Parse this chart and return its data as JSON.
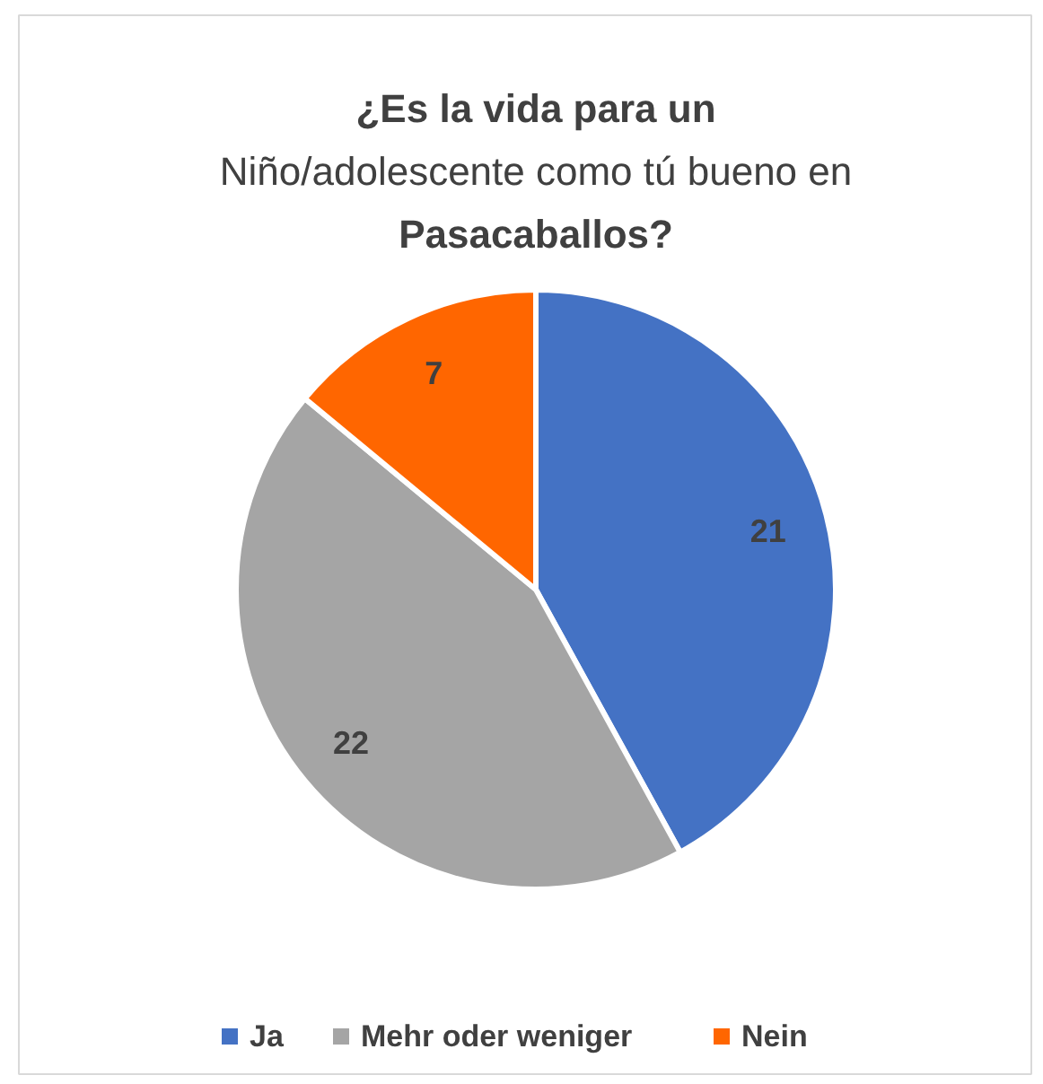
{
  "chart_data": {
    "type": "pie",
    "title": "¿Es la vida para un\nNiño/adolescente como tú bueno en\nPasacaballos?",
    "categories": [
      "Ja",
      "Mehr oder weniger",
      "Nein"
    ],
    "values": [
      21,
      22,
      7
    ],
    "colors": [
      "#4472c4",
      "#a5a5a5",
      "#ff6600"
    ],
    "data_labels": true,
    "legend": "bottom"
  }
}
